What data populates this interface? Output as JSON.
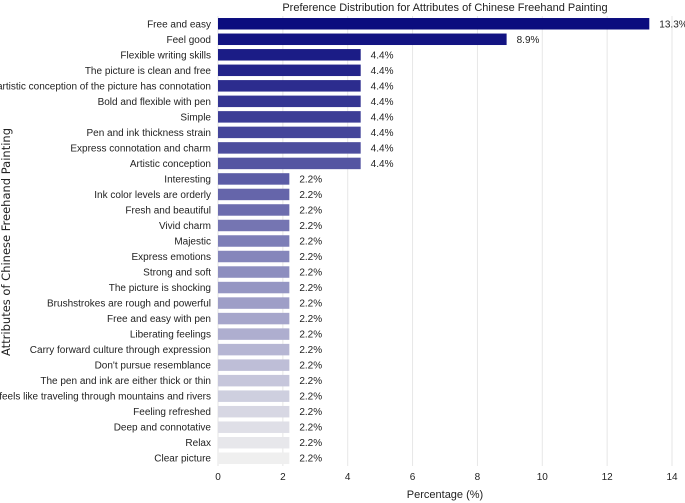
{
  "chart_data": {
    "type": "bar",
    "orientation": "horizontal",
    "title": "Preference Distribution for Attributes of Chinese Freehand Painting",
    "xlabel": "Percentage (%)",
    "ylabel": "Attributes of Chinese Freehand Painting",
    "xlim": [
      0,
      14
    ],
    "xticks": [
      0,
      2,
      4,
      6,
      8,
      10,
      12,
      14
    ],
    "xtick_labels": [
      "0",
      "2",
      "4",
      "6",
      "8",
      "10",
      "12",
      "14"
    ],
    "grid": "vertical",
    "color_start": "#0b0c7e",
    "color_end": "#efefef",
    "categories": [
      "Free and easy",
      "Feel good",
      "Flexible writing skills",
      "The picture is clean and free",
      "The artistic conception of the picture has connotation",
      "Bold and flexible with pen",
      "Simple",
      "Pen and ink thickness strain",
      "Express connotation and charm",
      "Artistic conception",
      "Interesting",
      "Ink color levels are orderly",
      "Fresh and beautiful",
      "Vivid charm",
      "Majestic",
      "Express emotions",
      "Strong and soft",
      "The picture is shocking",
      "Brushstrokes are rough and powerful",
      "Free and easy with pen",
      "Liberating feelings",
      "Carry forward culture through expression",
      "Don't pursue resemblance",
      "The pen and ink are either thick or thin",
      "It feels like traveling through mountains and rivers",
      "Feeling refreshed",
      "Deep and connotative",
      "Relax",
      "Clear picture"
    ],
    "values": [
      13.3,
      8.9,
      4.4,
      4.4,
      4.4,
      4.4,
      4.4,
      4.4,
      4.4,
      4.4,
      2.2,
      2.2,
      2.2,
      2.2,
      2.2,
      2.2,
      2.2,
      2.2,
      2.2,
      2.2,
      2.2,
      2.2,
      2.2,
      2.2,
      2.2,
      2.2,
      2.2,
      2.2,
      2.2
    ],
    "value_labels": [
      "13.3%",
      "8.9%",
      "4.4%",
      "4.4%",
      "4.4%",
      "4.4%",
      "4.4%",
      "4.4%",
      "4.4%",
      "4.4%",
      "2.2%",
      "2.2%",
      "2.2%",
      "2.2%",
      "2.2%",
      "2.2%",
      "2.2%",
      "2.2%",
      "2.2%",
      "2.2%",
      "2.2%",
      "2.2%",
      "2.2%",
      "2.2%",
      "2.2%",
      "2.2%",
      "2.2%",
      "2.2%",
      "2.2%"
    ]
  }
}
